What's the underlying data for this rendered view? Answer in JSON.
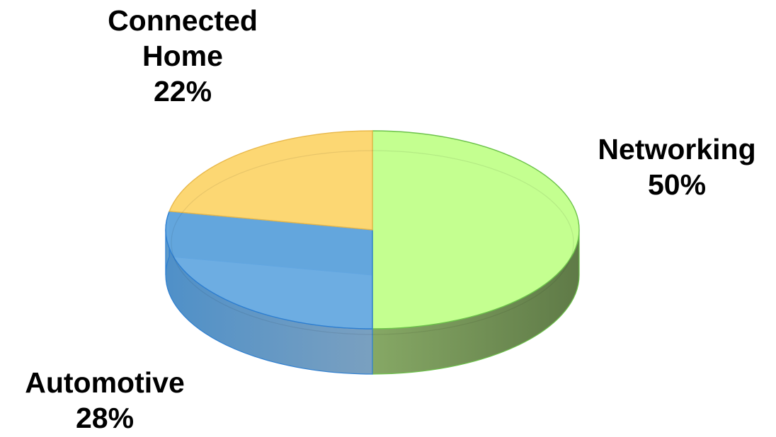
{
  "chart_data": {
    "type": "pie",
    "style": "3d",
    "title": "",
    "slices": [
      {
        "label_lines": [
          "Networking"
        ],
        "category": "Networking",
        "percent_label": "50%",
        "value": 50,
        "color": "#c1ff8a",
        "side_color": "#6f8a55",
        "edge_color": "#6cc24a"
      },
      {
        "label_lines": [
          "Automotive"
        ],
        "category": "Automotive",
        "percent_label": "28%",
        "value": 28,
        "color": "#65a9e0",
        "side_color": "#6a98c0",
        "edge_color": "#2f7fd0"
      },
      {
        "label_lines": [
          "Connected",
          "Home"
        ],
        "category": "Connected Home",
        "percent_label": "22%",
        "value": 22,
        "color": "#fcd56c",
        "side_color": "#3a7aa3",
        "edge_color": "#e8b84a"
      }
    ]
  }
}
